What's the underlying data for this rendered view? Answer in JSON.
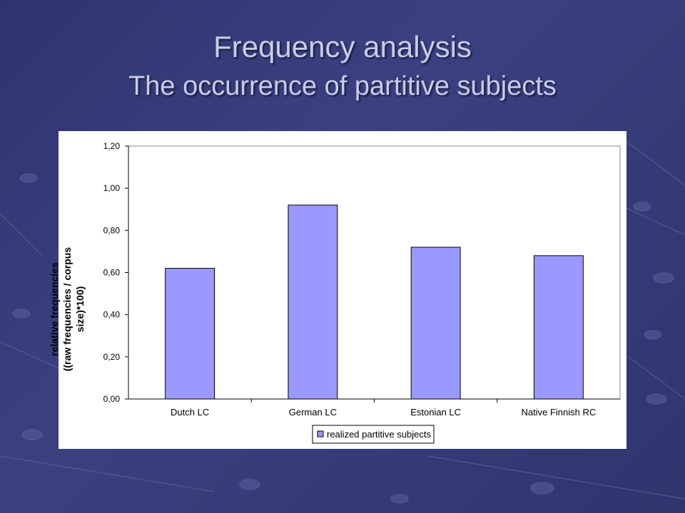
{
  "slide": {
    "title": "Frequency analysis",
    "subtitle": "The occurrence of partitive subjects"
  },
  "colors": {
    "bar_fill": "#9999ff",
    "bar_stroke": "#000000",
    "title_text": "#c9cbea",
    "background": "#343a78"
  },
  "chart_data": {
    "type": "bar",
    "ylabel_line1": "relative frequencies",
    "ylabel_line2": "((raw frequencies / corpus size)*100)",
    "xlabel": "",
    "categories": [
      "Dutch LC",
      "German LC",
      "Estonian LC",
      "Native Finnish RC"
    ],
    "series": [
      {
        "name": "realized partitive subjects",
        "values": [
          0.62,
          0.92,
          0.72,
          0.68
        ]
      }
    ],
    "ylim": [
      0,
      1.2
    ],
    "yticks": [
      "0,00",
      "0,20",
      "0,40",
      "0,60",
      "0,80",
      "1,00",
      "1,20"
    ],
    "grid": false,
    "legend": "bottom-center"
  }
}
